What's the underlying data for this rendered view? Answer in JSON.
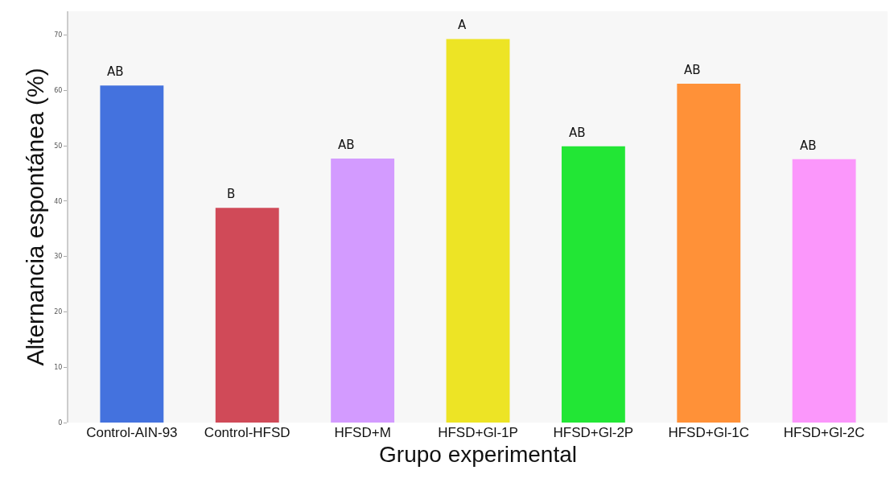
{
  "chart_data": {
    "type": "bar",
    "xlabel": "Grupo experimental",
    "ylabel": "Alternancia espontánea (%)",
    "categories": [
      "Control-AIN-93",
      "Control-HFSD",
      "HFSD+M",
      "HFSD+Gl-1P",
      "HFSD+Gl-2P",
      "HFSD+Gl-1C",
      "HFSD+Gl-2C"
    ],
    "values": [
      60.9,
      38.8,
      47.7,
      69.3,
      49.9,
      61.2,
      47.6
    ],
    "colors": [
      "#4472de",
      "#d04a58",
      "#d39bff",
      "#ede425",
      "#22e635",
      "#ff9138",
      "#fb97fb"
    ],
    "ylim": [
      0,
      74.3
    ],
    "yticks": [
      0,
      10,
      20,
      30,
      40,
      50,
      60,
      70
    ],
    "grid": false,
    "annotations": [
      {
        "text": "AB",
        "x": "Control-AIN-93",
        "y": 60.9
      },
      {
        "text": "B",
        "x": "Control-HFSD",
        "y": 38.8
      },
      {
        "text": "AB",
        "x": "HFSD+M",
        "y": 47.7
      },
      {
        "text": "A",
        "x": "HFSD+Gl-1P",
        "y": 69.3
      },
      {
        "text": "AB",
        "x": "HFSD+Gl-2P",
        "y": 49.9
      },
      {
        "text": "AB",
        "x": "HFSD+Gl-1C",
        "y": 61.2
      },
      {
        "text": "AB",
        "x": "HFSD+Gl-2C",
        "y": 47.6
      }
    ]
  }
}
